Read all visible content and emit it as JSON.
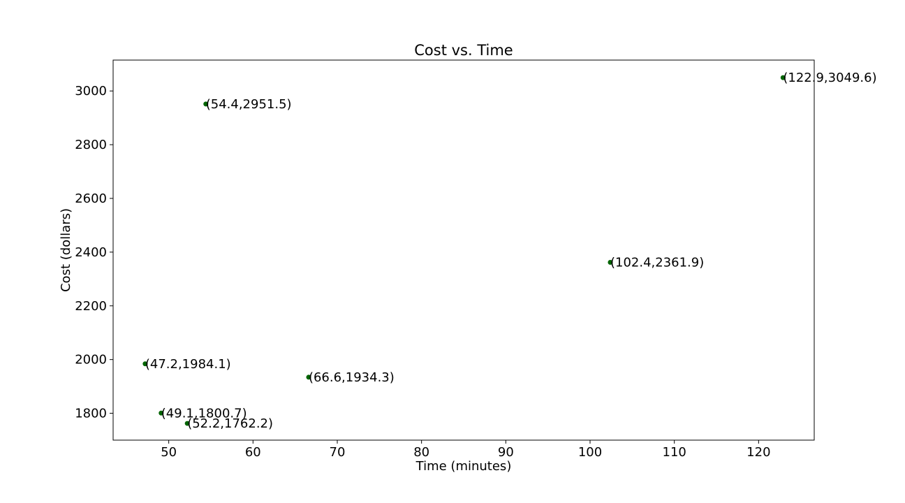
{
  "chart_data": {
    "type": "scatter",
    "title": "Cost vs. Time",
    "xlabel": "Time (minutes)",
    "ylabel": "Cost (dollars)",
    "xlim": [
      43.4,
      126.6
    ],
    "ylim": [
      1700,
      3115
    ],
    "xticks": [
      50,
      60,
      70,
      80,
      90,
      100,
      110,
      120
    ],
    "yticks": [
      1800,
      2000,
      2200,
      2400,
      2600,
      2800,
      3000
    ],
    "grid": false,
    "marker_color": "#006400",
    "points": [
      {
        "x": 54.4,
        "y": 2951.5,
        "label": "(54.4,2951.5)"
      },
      {
        "x": 122.9,
        "y": 3049.6,
        "label": "(122.9,3049.6)"
      },
      {
        "x": 102.4,
        "y": 2361.9,
        "label": "(102.4,2361.9)"
      },
      {
        "x": 47.2,
        "y": 1984.1,
        "label": "(47.2,1984.1)"
      },
      {
        "x": 66.6,
        "y": 1934.3,
        "label": "(66.6,1934.3)"
      },
      {
        "x": 49.1,
        "y": 1800.7,
        "label": "(49.1,1800.7)"
      },
      {
        "x": 52.2,
        "y": 1762.2,
        "label": "(52.2,1762.2)"
      }
    ]
  }
}
